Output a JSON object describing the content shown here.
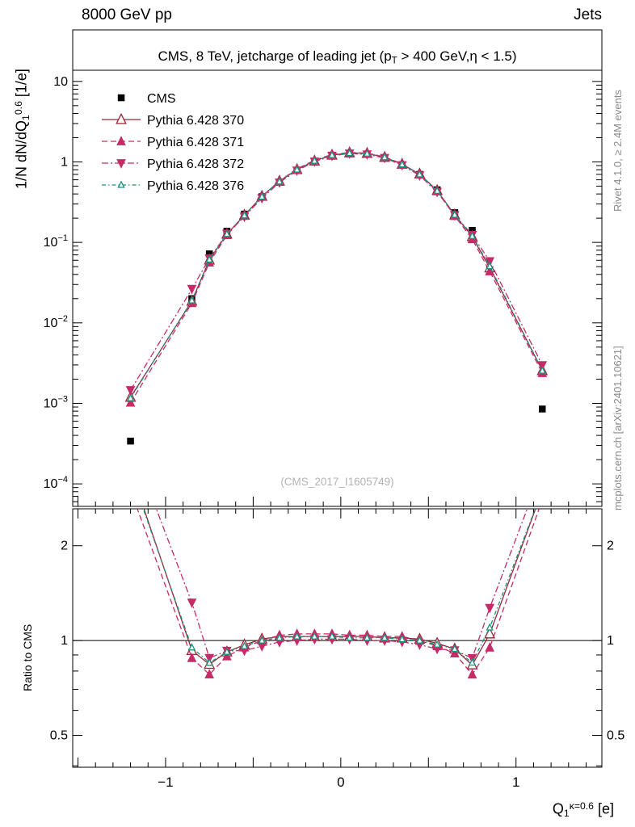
{
  "header": {
    "left": "8000 GeV pp",
    "right": "Jets"
  },
  "side_notes": {
    "top": "Rivet 4.1.0, ≥ 2.4M events",
    "bottom": "mcplots.cern.ch [arXiv:2401.10621]"
  },
  "watermark": "(CMS_2017_I1605749)",
  "title": {
    "pre": "CMS, 8 TeV, jetcharge of leading jet (p",
    "sub": "T",
    "post": " > 400 GeV,η < 1.5)"
  },
  "ylabel": {
    "pre": "1/N dN/dQ",
    "sub": "1",
    "sup": "0.6",
    "post": " [1/e]"
  },
  "ratio_ylabel": "Ratio to CMS",
  "xlabel": {
    "pre": "Q",
    "sub": "1",
    "sup": "κ=0.6",
    "post": " [e]"
  },
  "chart_data": {
    "type": "line",
    "x": [
      -1.2,
      -0.85,
      -0.75,
      -0.65,
      -0.55,
      -0.45,
      -0.35,
      -0.25,
      -0.15,
      -0.05,
      0.05,
      0.15,
      0.25,
      0.35,
      0.45,
      0.55,
      0.65,
      0.75,
      0.85,
      1.15
    ],
    "series": [
      {
        "id": "cms",
        "name": "CMS",
        "marker": "square",
        "size": 8.5,
        "color": "#000000",
        "line": "none",
        "values": [
          0.00034,
          0.02,
          0.072,
          0.138,
          0.225,
          0.37,
          0.56,
          0.78,
          1.0,
          1.18,
          1.26,
          1.24,
          1.12,
          0.92,
          0.7,
          0.45,
          0.234,
          0.141,
          0.046,
          0.00085
        ]
      },
      {
        "id": "pythia-370",
        "name": "Pythia 6.428 370",
        "marker": "tri-open",
        "size": 9,
        "color": "#9a2633",
        "line": "solid",
        "values": [
          0.00119,
          0.0186,
          0.0605,
          0.127,
          0.218,
          0.374,
          0.577,
          0.803,
          1.03,
          1.215,
          1.298,
          1.277,
          1.142,
          0.938,
          0.707,
          0.441,
          0.22,
          0.118,
          0.0483,
          0.00255
        ]
      },
      {
        "id": "pythia-371",
        "name": "Pythia 6.428 371",
        "marker": "tri",
        "size": 9,
        "color": "#c62a67",
        "line": "dashed",
        "values": [
          0.00102,
          0.0176,
          0.0562,
          0.123,
          0.214,
          0.37,
          0.582,
          0.819,
          1.05,
          1.239,
          1.31,
          1.29,
          1.154,
          0.948,
          0.7,
          0.432,
          0.213,
          0.11,
          0.0437,
          0.00238
        ]
      },
      {
        "id": "pythia-372",
        "name": "Pythia 6.428 372",
        "marker": "tri-down",
        "size": 9,
        "color": "#c62a67",
        "line": "dashdot",
        "values": [
          0.00146,
          0.0264,
          0.0634,
          0.128,
          0.209,
          0.355,
          0.554,
          0.78,
          1.01,
          1.192,
          1.273,
          1.24,
          1.12,
          0.911,
          0.679,
          0.423,
          0.218,
          0.124,
          0.0584,
          0.00298
        ]
      },
      {
        "id": "pythia-376",
        "name": "Pythia 6.428 376",
        "marker": "tri-open",
        "size": 5.5,
        "color": "#18957f",
        "line": "dashdotdot",
        "values": [
          0.00116,
          0.019,
          0.0612,
          0.127,
          0.216,
          0.37,
          0.571,
          0.803,
          1.03,
          1.215,
          1.285,
          1.265,
          1.142,
          0.929,
          0.7,
          0.437,
          0.22,
          0.12,
          0.0506,
          0.00255
        ]
      }
    ],
    "axes": {
      "xlim": [
        -1.53,
        1.49
      ],
      "ylim_main": [
        5.25e-05,
        43.7
      ],
      "ylim_ratio": [
        0.396,
        2.62
      ],
      "xticks": [
        {
          "v": -1,
          "label": "−1"
        },
        {
          "v": 0,
          "label": "0"
        },
        {
          "v": 1,
          "label": "1"
        }
      ],
      "yticks_main": [
        {
          "v": 10,
          "label": "10"
        },
        {
          "v": 1,
          "label": "1"
        },
        {
          "v": 0.1,
          "base": "10",
          "exp": "−1"
        },
        {
          "v": 0.01,
          "base": "10",
          "exp": "−2"
        },
        {
          "v": 0.001,
          "base": "10",
          "exp": "−3"
        },
        {
          "v": 0.0001,
          "base": "10",
          "exp": "−4"
        }
      ],
      "yticks_ratio": [
        {
          "v": 0.5,
          "label": "0.5"
        },
        {
          "v": 1,
          "label": "1"
        },
        {
          "v": 2,
          "label": "2"
        }
      ],
      "ratio_reference": 1
    }
  }
}
